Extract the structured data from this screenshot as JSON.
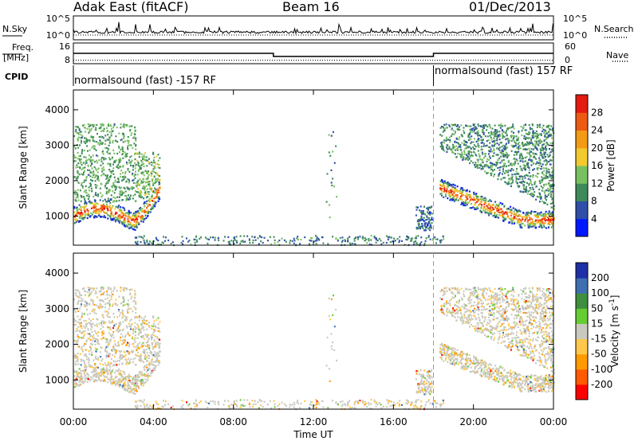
{
  "header": {
    "station": "Adak East (fitACF)",
    "beam": "Beam 16",
    "date": "01/Dec/2013"
  },
  "strip_labels": {
    "nsky": "N.Sky",
    "nsearch": "N.Search",
    "freq_line1": "Freq.",
    "freq_line2": "[MHz]",
    "nave": "Nave",
    "cpid": "CPID"
  },
  "cpid_segments": [
    {
      "label": "normalsound (fast) -157 RF"
    },
    {
      "label": "normalsound (fast) 157 RF"
    }
  ],
  "colors": {
    "power": [
      "#0018ff",
      "#2f4fa8",
      "#3f8a5a",
      "#79c160",
      "#f2c92f",
      "#f39a16",
      "#ec5a13",
      "#e31b10"
    ],
    "velocity": [
      "#ff0000",
      "#ff5a00",
      "#ff9a00",
      "#ffc84a",
      "#c9c9c0",
      "#66cc33",
      "#3f8f3f",
      "#3f6fb0",
      "#1f2fa5"
    ],
    "axis": "#000000",
    "cpid_divider": "#999999"
  },
  "chart_data": [
    {
      "id": "nsky-nsearch",
      "type": "line",
      "left_axis": {
        "ticks": [
          "10^5",
          "10^0"
        ]
      },
      "right_axis": {
        "ticks": [
          "10^5",
          "10^0"
        ]
      }
    },
    {
      "id": "frequency-nave",
      "type": "line",
      "left_axis": {
        "ticks": [
          "16",
          "8"
        ]
      },
      "right_axis": {
        "ticks": [
          "60",
          "0"
        ]
      },
      "frequency_mhz": {
        "x": [
          "00:00",
          "10:00",
          "10:00",
          "18:00",
          "18:00",
          "24:00"
        ],
        "y": [
          12,
          12,
          10.8,
          10.8,
          12,
          12
        ]
      },
      "nave": {
        "value": 10
      }
    },
    {
      "id": "power",
      "type": "heatmap",
      "ylabel": "Slant Range [km]",
      "ylim": [
        180,
        4560
      ],
      "yticks": [
        "1000",
        "2000",
        "3000",
        "4000"
      ],
      "ytick_values": [
        1000,
        2000,
        3000,
        4000
      ],
      "colorbar_label": "Power [dB]",
      "colorbar_ticks": [
        "4",
        "8",
        "12",
        "16",
        "20",
        "24",
        "28"
      ],
      "colorbar_range": [
        0,
        32
      ]
    },
    {
      "id": "velocity",
      "type": "heatmap",
      "ylabel": "Slant Range [km]",
      "ylim": [
        180,
        4560
      ],
      "yticks": [
        "1000",
        "2000",
        "3000",
        "4000"
      ],
      "ytick_values": [
        1000,
        2000,
        3000,
        4000
      ],
      "colorbar_label": "Velocity [m s",
      "colorbar_label_sup": "-1",
      "colorbar_label_end": "]",
      "colorbar_ticks": [
        "-200",
        "-100",
        "-50",
        "-15",
        "15",
        "50",
        "100",
        "200"
      ]
    }
  ],
  "time_axis": {
    "xlabel": "Time UT",
    "ticks": [
      "00:00",
      "04:00",
      "08:00",
      "12:00",
      "16:00",
      "20:00",
      "00:00"
    ],
    "tick_hours": [
      0,
      4,
      8,
      12,
      16,
      20,
      24
    ],
    "cpid_change_hour": 18
  }
}
